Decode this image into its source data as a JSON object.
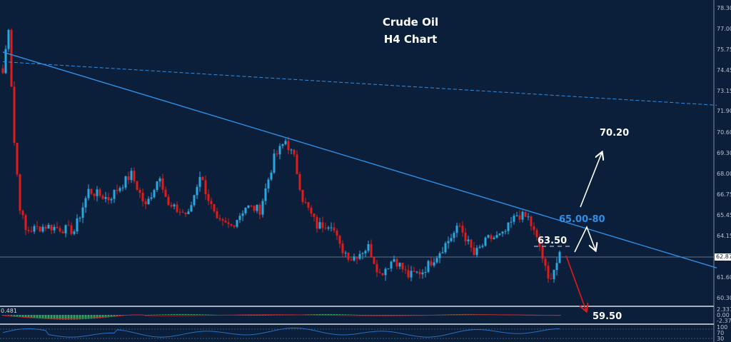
{
  "chart_data": {
    "type": "candlestick",
    "title": "Crude Oil",
    "subtitle": "H4 Chart",
    "ylim": [
      59.8,
      78.8
    ],
    "y_ticks": [
      "78.30",
      "77.00",
      "75.75",
      "74.45",
      "73.15",
      "71.90",
      "70.60",
      "69.30",
      "68.00",
      "66.75",
      "65.45",
      "64.15",
      "61.60",
      "60.30"
    ],
    "current_price": "62.87",
    "price_path_waypoints": [
      [
        0,
        74.3
      ],
      [
        2,
        77.2
      ],
      [
        4,
        70
      ],
      [
        6,
        66
      ],
      [
        8,
        64.5
      ],
      [
        15,
        64.8
      ],
      [
        25,
        64.5
      ],
      [
        30,
        67
      ],
      [
        37,
        66.5
      ],
      [
        45,
        68
      ],
      [
        50,
        66
      ],
      [
        55,
        68
      ],
      [
        58,
        66
      ],
      [
        65,
        65.5
      ],
      [
        69,
        68
      ],
      [
        75,
        65
      ],
      [
        80,
        64.8
      ],
      [
        85,
        66
      ],
      [
        90,
        65.8
      ],
      [
        95,
        69
      ],
      [
        99,
        70.1
      ],
      [
        102,
        69
      ],
      [
        105,
        66.5
      ],
      [
        110,
        64.8
      ],
      [
        115,
        65
      ],
      [
        118,
        63.5
      ],
      [
        122,
        62.8
      ],
      [
        128,
        63.5
      ],
      [
        132,
        61.8
      ],
      [
        137,
        62.8
      ],
      [
        142,
        61.7
      ],
      [
        147,
        62
      ],
      [
        152,
        63
      ],
      [
        160,
        64.8
      ],
      [
        165,
        63
      ],
      [
        170,
        64
      ],
      [
        175,
        64.2
      ],
      [
        180,
        65.5
      ],
      [
        184,
        65.3
      ],
      [
        188,
        63.5
      ],
      [
        191,
        61.4
      ],
      [
        195,
        62.9
      ]
    ],
    "trendlines": [
      {
        "style": "solid",
        "from": [
          0,
          75.6
        ],
        "to": [
          250,
          62.2
        ]
      },
      {
        "style": "dashed",
        "from": [
          0,
          75.0
        ],
        "to": [
          250,
          72.3
        ]
      }
    ],
    "annotations": {
      "target_up": "70.20",
      "resistance_zone": "65.00-80",
      "pivot": "63.50",
      "target_down": "59.50"
    },
    "macd": {
      "label": "0.481",
      "ticks": [
        "2.337",
        "0.00",
        "-2.372"
      ]
    },
    "rsi": {
      "ticks": [
        "100",
        "70",
        "30"
      ]
    },
    "colors": {
      "background": "#0b1f3a",
      "bull": "#29a8e0",
      "bear": "#e01b1b",
      "trendline": "#2f8fe6",
      "zone_text": "#2f8fe6",
      "down_arrow": "#e01b1b",
      "up_arrow": "#ffffff"
    }
  }
}
